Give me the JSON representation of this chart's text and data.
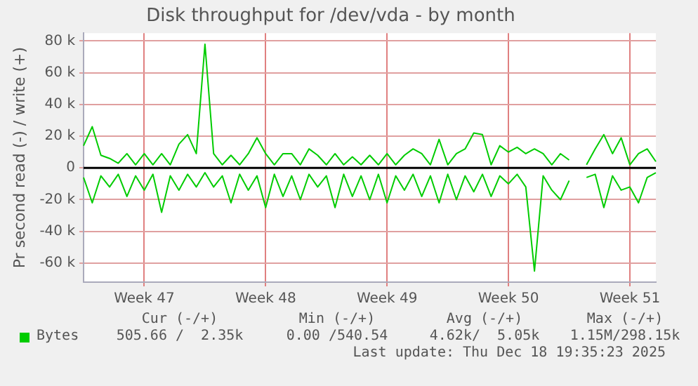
{
  "chart_data": {
    "type": "line",
    "title": "Disk throughput for /dev/vda - by month",
    "ylabel": "Pr second read (-) / write (+)",
    "categories": [
      null,
      null,
      null,
      null,
      null,
      null,
      null,
      "Week 47",
      null,
      null,
      null,
      null,
      null,
      null,
      null,
      null,
      null,
      null,
      null,
      null,
      null,
      "Week 48",
      null,
      null,
      null,
      null,
      null,
      null,
      null,
      null,
      null,
      null,
      null,
      null,
      null,
      "Week 49",
      null,
      null,
      null,
      null,
      null,
      null,
      null,
      null,
      null,
      null,
      null,
      null,
      null,
      "Week 50",
      null,
      null,
      null,
      null,
      null,
      null,
      null,
      null,
      null,
      null,
      null,
      null,
      null,
      "Week 51",
      null,
      null,
      null
    ],
    "series": [
      {
        "name": "Bytes",
        "color": "#00cc00",
        "values": [
          -6000,
          -22000,
          -5000,
          -12000,
          -4000,
          -18000,
          -5000,
          -14000,
          -4000,
          -28000,
          -5000,
          -14000,
          -4000,
          -12000,
          -3000,
          -12000,
          -5000,
          -22000,
          -4000,
          -14000,
          -5000,
          -25000,
          -4000,
          -18000,
          -5000,
          -20000,
          -4000,
          -12000,
          -5000,
          -25000,
          -4000,
          -18000,
          -5000,
          -20000,
          -4000,
          -22000,
          -5000,
          -14000,
          -4000,
          -18000,
          -5000,
          -22000,
          -4000,
          -20000,
          -5000,
          -15000,
          -4000,
          -18000,
          -5000,
          -10000,
          -4000,
          -12000,
          -65000,
          -5000,
          -14000,
          -20000,
          -8000,
          null,
          -6000,
          -4000,
          -25000,
          -5000,
          -14000,
          -12000,
          -22000,
          -6000,
          -3000
        ]
      },
      {
        "color": "#00cc00",
        "values": [
          14000,
          26000,
          8000,
          6000,
          3000,
          9000,
          2000,
          9000,
          2000,
          9000,
          2000,
          15000,
          21000,
          9000,
          78000,
          9000,
          2000,
          8000,
          2000,
          9000,
          19000,
          9000,
          2000,
          9000,
          9000,
          2000,
          12000,
          8000,
          2000,
          9000,
          2000,
          7000,
          2000,
          8000,
          2000,
          9000,
          2000,
          8000,
          12000,
          9000,
          2000,
          18000,
          2000,
          9000,
          12000,
          22000,
          21000,
          2000,
          14000,
          10000,
          13000,
          9000,
          12000,
          9000,
          2000,
          9000,
          5000,
          null,
          2000,
          12000,
          21000,
          9000,
          19000,
          2000,
          9000,
          12000,
          4000
        ]
      }
    ],
    "ylim": [
      -72000,
      85000
    ],
    "yticks": [
      {
        "value": -60000,
        "label": "-60 k"
      },
      {
        "value": -40000,
        "label": "-40 k"
      },
      {
        "value": -20000,
        "label": "-20 k"
      },
      0,
      {
        "value": 20000,
        "label": "20 k"
      },
      {
        "value": 40000,
        "label": "40 k"
      },
      {
        "value": 60000,
        "label": "60 k"
      },
      {
        "value": 80000,
        "label": "80 k"
      }
    ],
    "ref_lines": [
      {
        "axis": "y",
        "value": 0,
        "color": "#000000"
      }
    ],
    "grid": true,
    "legend": "bottom",
    "marker": "none",
    "line_style": "solid",
    "annotations": [
      "Cur (-/+)",
      "Min (-/+)",
      "Avg (-/+)",
      "Max (-/+)",
      "505.66 /  2.35k",
      "0.00 /540.54",
      "4.62k/  5.05k",
      "1.15M/298.15k",
      "Last update: Thu Dec 18 19:35:23 2025"
    ]
  }
}
